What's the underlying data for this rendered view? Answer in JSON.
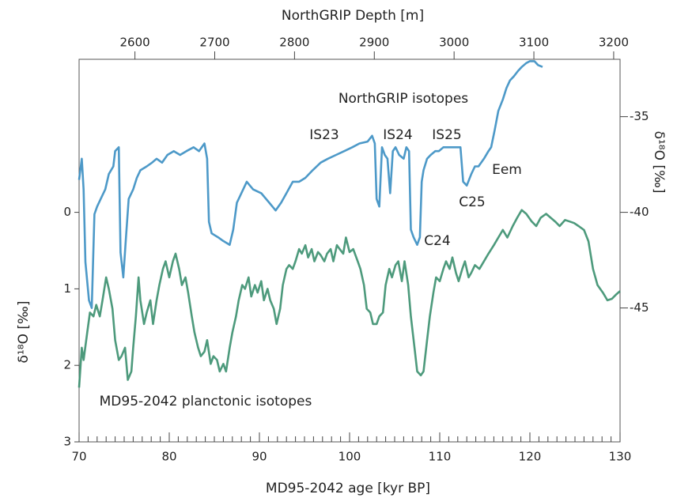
{
  "chart_data": {
    "type": "line",
    "x_label": "MD95-2042 age [kyr BP]",
    "x2_label": "NorthGRIP Depth [m]",
    "y_label": "δ¹⁸O [‰]",
    "y2_label": "δ¹⁸O [‰]",
    "xlim": [
      70,
      130
    ],
    "xticks": [
      70,
      80,
      90,
      100,
      110,
      120,
      130
    ],
    "xminorticks": [
      71,
      72,
      73,
      74,
      75,
      76,
      77,
      78,
      79,
      81,
      82,
      83,
      84,
      85,
      86,
      87,
      88,
      89,
      91,
      92,
      93,
      94,
      95,
      96,
      97,
      98,
      99,
      101,
      102,
      103,
      104,
      105,
      106,
      107,
      108,
      109,
      111,
      112,
      113,
      114,
      115,
      116,
      117,
      118,
      119,
      121,
      122,
      123,
      124,
      125,
      126,
      127,
      128,
      129
    ],
    "x2lim": [
      2530,
      3208
    ],
    "x2ticks": [
      2600,
      2700,
      2800,
      2900,
      3000,
      3100,
      3200
    ],
    "ylim": [
      3,
      -2
    ],
    "yticks": [
      0,
      1,
      2,
      3
    ],
    "y2lim": [
      -52,
      -32
    ],
    "y2ticks": [
      -35,
      -40,
      -45
    ],
    "annotations": [
      "IS23",
      "IS24",
      "IS25",
      "Eem",
      "C25",
      "C24"
    ],
    "series": [
      {
        "name": "NorthGRIP isotopes",
        "color": "#3a8ec2",
        "axis": "y2",
        "x": [
          70.0,
          70.3,
          70.5,
          70.7,
          71.1,
          71.4,
          71.7,
          72.0,
          72.5,
          72.9,
          73.3,
          73.8,
          74.0,
          74.4,
          74.6,
          74.9,
          75.2,
          75.5,
          76.0,
          76.4,
          76.8,
          77.5,
          78.1,
          78.6,
          79.2,
          79.8,
          80.5,
          81.2,
          81.9,
          82.7,
          83.3,
          83.9,
          84.2,
          84.4,
          84.7,
          85.4,
          86.0,
          86.7,
          87.1,
          87.5,
          88.0,
          88.6,
          89.3,
          90.2,
          91.1,
          91.8,
          92.4,
          93.0,
          93.7,
          94.4,
          95.1,
          95.9,
          96.8,
          97.6,
          98.5,
          99.4,
          100.3,
          101.1,
          102.0,
          102.5,
          102.8,
          103.0,
          103.3,
          103.6,
          103.9,
          104.2,
          104.5,
          104.8,
          105.1,
          105.5,
          106.0,
          106.3,
          106.6,
          106.8,
          107.1,
          107.5,
          107.8,
          108.0,
          108.2,
          108.6,
          109.0,
          109.5,
          109.9,
          110.4,
          110.8,
          111.2,
          111.8,
          112.3,
          112.6,
          113.0,
          113.5,
          113.9,
          114.3,
          114.9,
          115.4,
          115.7,
          116.1,
          116.5,
          117.0,
          117.4,
          117.8,
          118.2,
          118.7,
          119.1,
          119.6,
          120.0,
          120.5,
          120.9,
          121.4
        ],
        "values": [
          -38.3,
          -37.2,
          -38.8,
          -42.6,
          -44.6,
          -45.0,
          -40.1,
          -39.7,
          -39.2,
          -38.8,
          -38.0,
          -37.6,
          -36.8,
          -36.6,
          -42.1,
          -43.4,
          -41.3,
          -39.3,
          -38.8,
          -38.2,
          -37.8,
          -37.6,
          -37.4,
          -37.2,
          -37.4,
          -37.0,
          -36.8,
          -37.0,
          -36.8,
          -36.6,
          -36.8,
          -36.4,
          -37.2,
          -40.5,
          -41.1,
          -41.3,
          -41.5,
          -41.7,
          -40.9,
          -39.5,
          -39.0,
          -38.4,
          -38.8,
          -39.0,
          -39.5,
          -39.9,
          -39.5,
          -39.0,
          -38.4,
          -38.4,
          -38.2,
          -37.8,
          -37.4,
          -37.2,
          -37.0,
          -36.8,
          -36.6,
          -36.4,
          -36.3,
          -36.0,
          -36.4,
          -39.3,
          -39.7,
          -36.6,
          -37.0,
          -37.2,
          -39.0,
          -36.8,
          -36.6,
          -37.0,
          -37.2,
          -36.6,
          -36.8,
          -40.9,
          -41.3,
          -41.7,
          -41.3,
          -38.4,
          -37.8,
          -37.2,
          -37.0,
          -36.8,
          -36.8,
          -36.6,
          -36.6,
          -36.6,
          -36.6,
          -36.6,
          -38.4,
          -38.6,
          -38.0,
          -37.6,
          -37.6,
          -37.2,
          -36.8,
          -36.6,
          -35.7,
          -34.7,
          -34.1,
          -33.5,
          -33.1,
          -32.9,
          -32.6,
          -32.4,
          -32.2,
          -32.1,
          -32.1,
          -32.3,
          -32.4
        ]
      },
      {
        "name": "MD95-2042 planctonic isotopes",
        "color": "#3a8f6e",
        "axis": "y",
        "x": [
          70.0,
          70.3,
          70.5,
          70.9,
          71.2,
          71.6,
          71.9,
          72.3,
          72.6,
          73.0,
          73.3,
          73.7,
          74.0,
          74.4,
          74.7,
          75.1,
          75.4,
          75.8,
          76.0,
          76.3,
          76.6,
          76.8,
          77.2,
          77.5,
          77.9,
          78.2,
          78.6,
          78.9,
          79.3,
          79.6,
          80.0,
          80.4,
          80.7,
          81.1,
          81.4,
          81.8,
          82.1,
          82.5,
          82.8,
          83.2,
          83.5,
          83.9,
          84.2,
          84.6,
          84.9,
          85.3,
          85.6,
          86.0,
          86.3,
          86.7,
          87.0,
          87.4,
          87.7,
          88.1,
          88.4,
          88.8,
          89.1,
          89.5,
          89.8,
          90.2,
          90.5,
          90.9,
          91.2,
          91.6,
          91.9,
          92.3,
          92.6,
          93.0,
          93.3,
          93.7,
          94.0,
          94.4,
          94.7,
          95.1,
          95.4,
          95.8,
          96.1,
          96.5,
          96.8,
          97.2,
          97.5,
          97.9,
          98.2,
          98.6,
          98.9,
          99.3,
          99.6,
          100.0,
          100.4,
          100.9,
          101.2,
          101.6,
          101.9,
          102.3,
          102.6,
          103.0,
          103.3,
          103.7,
          104.0,
          104.4,
          104.7,
          105.1,
          105.4,
          105.8,
          106.1,
          106.5,
          106.8,
          107.2,
          107.5,
          107.9,
          108.2,
          108.6,
          108.9,
          109.3,
          109.6,
          110.0,
          110.4,
          110.7,
          111.1,
          111.4,
          111.8,
          112.1,
          112.5,
          112.8,
          113.2,
          113.5,
          113.9,
          114.4,
          114.9,
          115.4,
          116.0,
          116.5,
          117.0,
          117.5,
          118.1,
          118.6,
          119.1,
          119.6,
          120.2,
          120.7,
          121.2,
          121.8,
          122.3,
          122.8,
          123.3,
          123.9,
          124.4,
          124.9,
          125.4,
          126.0,
          126.5,
          127.0,
          127.5,
          128.1,
          128.6,
          129.1,
          129.6,
          130.0
        ],
        "values": [
          2.29,
          1.77,
          1.93,
          1.57,
          1.31,
          1.36,
          1.21,
          1.36,
          1.15,
          0.85,
          1.0,
          1.26,
          1.67,
          1.93,
          1.88,
          1.77,
          2.19,
          2.08,
          1.77,
          1.36,
          0.85,
          1.15,
          1.46,
          1.31,
          1.15,
          1.46,
          1.15,
          0.95,
          0.74,
          0.64,
          0.85,
          0.64,
          0.54,
          0.74,
          0.95,
          0.85,
          1.05,
          1.36,
          1.57,
          1.77,
          1.88,
          1.82,
          1.67,
          1.98,
          1.88,
          1.93,
          2.08,
          1.98,
          2.08,
          1.77,
          1.57,
          1.36,
          1.15,
          0.95,
          1.0,
          0.85,
          1.1,
          0.95,
          1.05,
          0.9,
          1.15,
          1.0,
          1.15,
          1.26,
          1.46,
          1.26,
          0.95,
          0.74,
          0.69,
          0.74,
          0.64,
          0.48,
          0.54,
          0.43,
          0.59,
          0.48,
          0.64,
          0.52,
          0.56,
          0.64,
          0.54,
          0.48,
          0.64,
          0.43,
          0.48,
          0.54,
          0.33,
          0.52,
          0.48,
          0.64,
          0.74,
          0.95,
          1.26,
          1.31,
          1.46,
          1.46,
          1.36,
          1.31,
          0.95,
          0.74,
          0.85,
          0.69,
          0.64,
          0.9,
          0.64,
          0.95,
          1.36,
          1.77,
          2.08,
          2.13,
          2.08,
          1.67,
          1.36,
          1.05,
          0.85,
          0.9,
          0.74,
          0.64,
          0.74,
          0.59,
          0.79,
          0.9,
          0.74,
          0.64,
          0.85,
          0.79,
          0.69,
          0.74,
          0.64,
          0.54,
          0.43,
          0.33,
          0.23,
          0.33,
          0.18,
          0.07,
          -0.03,
          0.02,
          0.12,
          0.18,
          0.07,
          0.02,
          0.07,
          0.12,
          0.18,
          0.1,
          0.12,
          0.14,
          0.18,
          0.23,
          0.38,
          0.74,
          0.95,
          1.05,
          1.15,
          1.13,
          1.07,
          1.03
        ]
      }
    ]
  }
}
